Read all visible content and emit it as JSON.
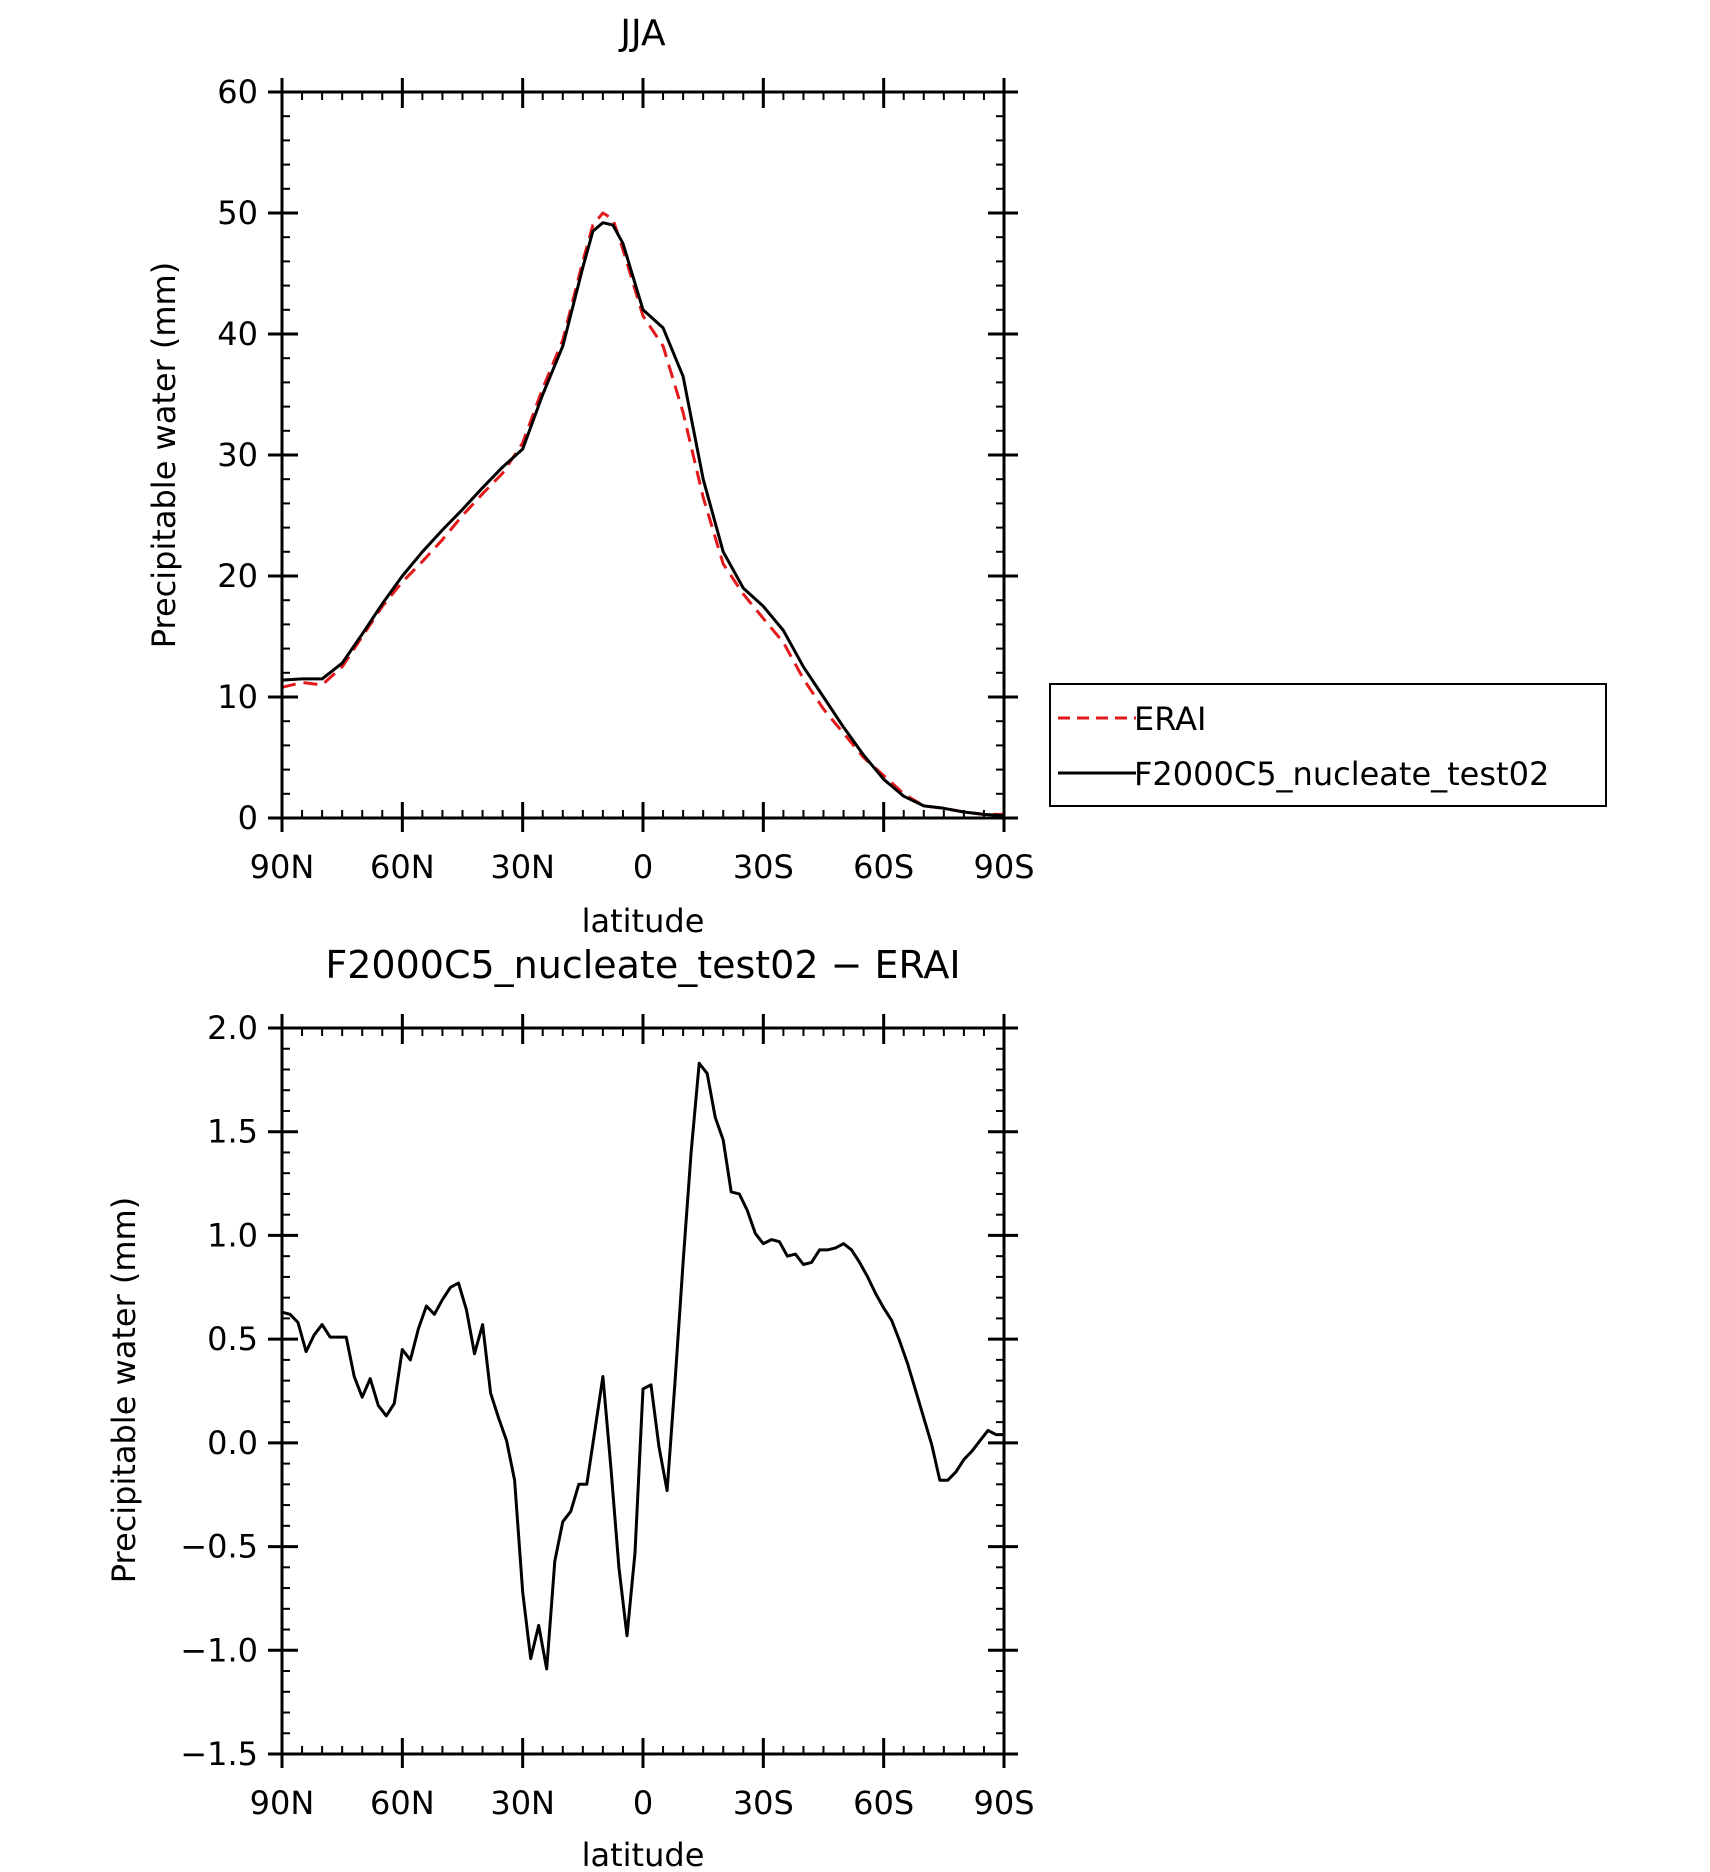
{
  "chart_data": [
    {
      "type": "line",
      "title": "JJA",
      "xlabel": "latitude",
      "ylabel": "Precipitable water (mm)",
      "xlim": [
        90,
        -90
      ],
      "ylim": [
        0,
        60
      ],
      "x_ticks": [
        90,
        60,
        30,
        0,
        -30,
        -60,
        -90
      ],
      "x_tick_labels": [
        "90N",
        "60N",
        "30N",
        "0",
        "30S",
        "60S",
        "90S"
      ],
      "y_ticks": [
        0,
        10,
        20,
        30,
        40,
        50,
        60
      ],
      "y_tick_labels": [
        "0",
        "10",
        "20",
        "30",
        "40",
        "50",
        "60"
      ],
      "grid": false,
      "legend_position": "right",
      "x": [
        90,
        85,
        80,
        75,
        70,
        65,
        60,
        55,
        50,
        45,
        40,
        35,
        30,
        25,
        20,
        15,
        12.5,
        10,
        7.5,
        5,
        0,
        -5,
        -10,
        -15,
        -20,
        -25,
        -30,
        -35,
        -40,
        -45,
        -50,
        -55,
        -60,
        -65,
        -70,
        -75,
        -80,
        -85,
        -90
      ],
      "series": [
        {
          "name": "ERAI",
          "color": "#e31a1c",
          "style": "dashed",
          "values": [
            10.8,
            11.2,
            11.0,
            12.5,
            15.0,
            17.5,
            19.5,
            21.2,
            23.0,
            25.0,
            26.8,
            28.5,
            31.0,
            35.5,
            39.5,
            46.0,
            49.0,
            50.0,
            49.5,
            47.0,
            41.5,
            39.0,
            33.5,
            26.5,
            21.0,
            18.5,
            16.5,
            14.5,
            11.5,
            9.0,
            7.0,
            5.0,
            3.5,
            2.0,
            1.0,
            0.8,
            0.5,
            0.3,
            0.3
          ]
        },
        {
          "name": "F2000C5_nucleate_test02",
          "color": "#000000",
          "style": "solid",
          "values": [
            11.4,
            11.5,
            11.5,
            12.8,
            15.2,
            17.7,
            20.0,
            22.0,
            23.8,
            25.5,
            27.3,
            29.0,
            30.5,
            35.0,
            39.0,
            45.5,
            48.5,
            49.2,
            49.0,
            47.5,
            42.0,
            40.5,
            36.5,
            28.0,
            22.0,
            19.0,
            17.5,
            15.5,
            12.5,
            10.0,
            7.5,
            5.2,
            3.2,
            1.8,
            1.0,
            0.8,
            0.5,
            0.3,
            0.2
          ]
        }
      ]
    },
    {
      "type": "line",
      "title": "F2000C5_nucleate_test02 − ERAI",
      "xlabel": "latitude",
      "ylabel": "Precipitable water (mm)",
      "xlim": [
        90,
        -90
      ],
      "ylim": [
        -1.5,
        2.0
      ],
      "x_ticks": [
        90,
        60,
        30,
        0,
        -30,
        -60,
        -90
      ],
      "x_tick_labels": [
        "90N",
        "60N",
        "30N",
        "0",
        "30S",
        "60S",
        "90S"
      ],
      "y_ticks": [
        -1.5,
        -1.0,
        -0.5,
        0.0,
        0.5,
        1.0,
        1.5,
        2.0
      ],
      "y_tick_labels": [
        "−1.5",
        "−1.0",
        "−0.5",
        "0.0",
        "0.5",
        "1.0",
        "1.5",
        "2.0"
      ],
      "grid": false,
      "x": [
        90,
        88,
        86,
        84,
        82,
        80,
        78,
        76,
        74,
        72,
        70,
        68,
        66,
        64,
        62,
        60,
        58,
        56,
        54,
        52,
        50,
        48,
        46,
        44,
        42,
        40,
        38,
        36,
        34,
        32,
        30,
        28,
        26,
        24,
        22,
        20,
        18,
        16,
        14,
        12,
        10,
        8,
        6,
        4,
        2,
        0,
        -2,
        -4,
        -6,
        -8,
        -10,
        -12,
        -14,
        -16,
        -18,
        -20,
        -22,
        -24,
        -26,
        -28,
        -30,
        -32,
        -34,
        -36,
        -38,
        -40,
        -42,
        -44,
        -46,
        -48,
        -50,
        -52,
        -54,
        -56,
        -58,
        -60,
        -62,
        -64,
        -66,
        -68,
        -70,
        -72,
        -74,
        -76,
        -78,
        -80,
        -82,
        -84,
        -86,
        -88,
        -90
      ],
      "series": [
        {
          "color": "#000000",
          "style": "solid",
          "values": [
            0.63,
            0.62,
            0.58,
            0.44,
            0.52,
            0.57,
            0.51,
            0.51,
            0.51,
            0.32,
            0.22,
            0.31,
            0.18,
            0.13,
            0.19,
            0.45,
            0.4,
            0.55,
            0.66,
            0.62,
            0.69,
            0.75,
            0.77,
            0.64,
            0.43,
            0.57,
            0.24,
            0.12,
            0.01,
            -0.18,
            -0.72,
            -1.04,
            -0.88,
            -1.09,
            -0.57,
            -0.38,
            -0.33,
            -0.2,
            -0.2,
            0.06,
            0.32,
            -0.12,
            -0.6,
            -0.93,
            -0.53,
            0.26,
            0.28,
            -0.02,
            -0.23,
            0.3,
            0.87,
            1.4,
            1.83,
            1.78,
            1.57,
            1.46,
            1.21,
            1.2,
            1.12,
            1.01,
            0.96,
            0.98,
            0.97,
            0.9,
            0.91,
            0.86,
            0.87,
            0.93,
            0.93,
            0.94,
            0.96,
            0.93,
            0.87,
            0.8,
            0.72,
            0.65,
            0.59,
            0.49,
            0.38,
            0.25,
            0.12,
            -0.01,
            -0.18,
            -0.18,
            -0.14,
            -0.08,
            -0.04,
            0.01,
            0.06,
            0.04,
            0.04
          ]
        }
      ]
    }
  ],
  "legend": {
    "entries": [
      "ERAI",
      "F2000C5_nucleate_test02"
    ]
  }
}
